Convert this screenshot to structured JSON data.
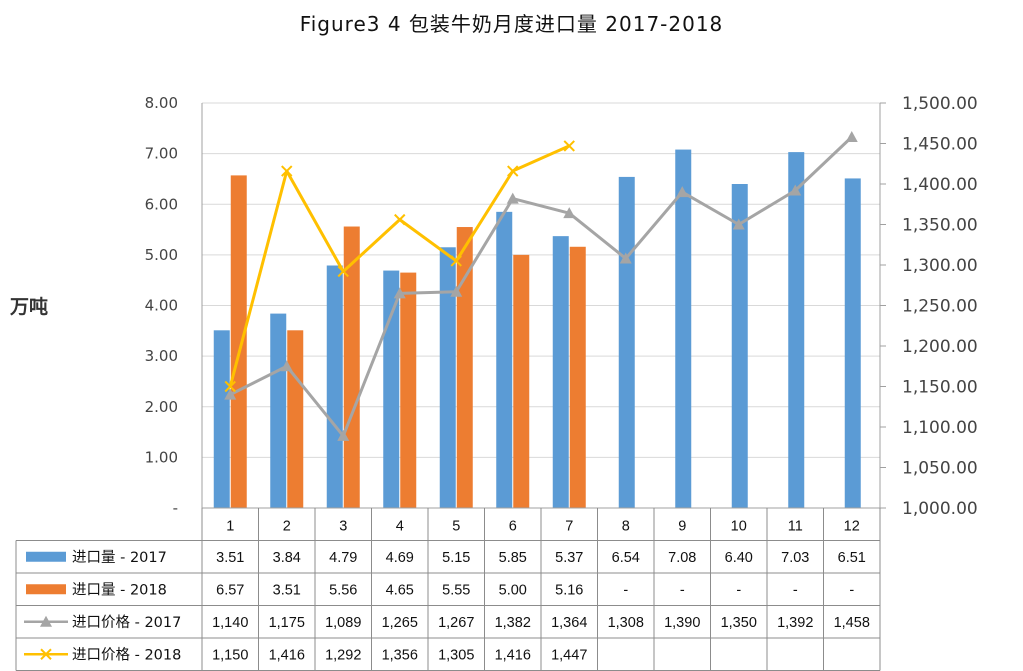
{
  "chart_data": {
    "type": "bar",
    "title": "Figure3 4 包装牛奶月度进口量 2017-2018",
    "ylabel": "万吨",
    "categories": [
      "1",
      "2",
      "3",
      "4",
      "5",
      "6",
      "7",
      "8",
      "9",
      "10",
      "11",
      "12"
    ],
    "ylim": [
      0,
      8
    ],
    "y_ticks": [
      "-",
      "1.00",
      "2.00",
      "3.00",
      "4.00",
      "5.00",
      "6.00",
      "7.00",
      "8.00"
    ],
    "y2lim": [
      1000,
      1500
    ],
    "y2_ticks": [
      "1,000.00",
      "1,050.00",
      "1,100.00",
      "1,150.00",
      "1,200.00",
      "1,250.00",
      "1,300.00",
      "1,350.00",
      "1,400.00",
      "1,450.00",
      "1,500.00"
    ],
    "series": [
      {
        "name": "进口量 - 2017",
        "type": "bar",
        "axis": "left",
        "color": "#5b9bd5",
        "values": [
          3.51,
          3.84,
          4.79,
          4.69,
          5.15,
          5.85,
          5.37,
          6.54,
          7.08,
          6.4,
          7.03,
          6.51
        ],
        "table": [
          "3.51",
          "3.84",
          "4.79",
          "4.69",
          "5.15",
          "5.85",
          "5.37",
          "6.54",
          "7.08",
          "6.40",
          "7.03",
          "6.51"
        ]
      },
      {
        "name": "进口量 - 2018",
        "type": "bar",
        "axis": "left",
        "color": "#ed7d31",
        "values": [
          6.57,
          3.51,
          5.56,
          4.65,
          5.55,
          5.0,
          5.16,
          null,
          null,
          null,
          null,
          null
        ],
        "table": [
          "6.57",
          "3.51",
          "5.56",
          "4.65",
          "5.55",
          "5.00",
          "5.16",
          "-",
          "-",
          "-",
          "-",
          "-"
        ]
      },
      {
        "name": "进口价格 - 2017",
        "type": "line",
        "axis": "right",
        "color": "#a5a5a5",
        "marker": "triangle",
        "values": [
          1140,
          1175,
          1089,
          1265,
          1267,
          1382,
          1364,
          1308,
          1390,
          1350,
          1392,
          1458
        ],
        "table": [
          "1,140",
          "1,175",
          "1,089",
          "1,265",
          "1,267",
          "1,382",
          "1,364",
          "1,308",
          "1,390",
          "1,350",
          "1,392",
          "1,458"
        ]
      },
      {
        "name": "进口价格 - 2018",
        "type": "line",
        "axis": "right",
        "color": "#ffc000",
        "marker": "x",
        "values": [
          1150,
          1416,
          1292,
          1356,
          1305,
          1416,
          1447,
          null,
          null,
          null,
          null,
          null
        ],
        "table": [
          "1,150",
          "1,416",
          "1,292",
          "1,356",
          "1,305",
          "1,416",
          "1,447",
          "",
          "",
          "",
          "",
          ""
        ]
      }
    ],
    "legend": "data-table"
  }
}
